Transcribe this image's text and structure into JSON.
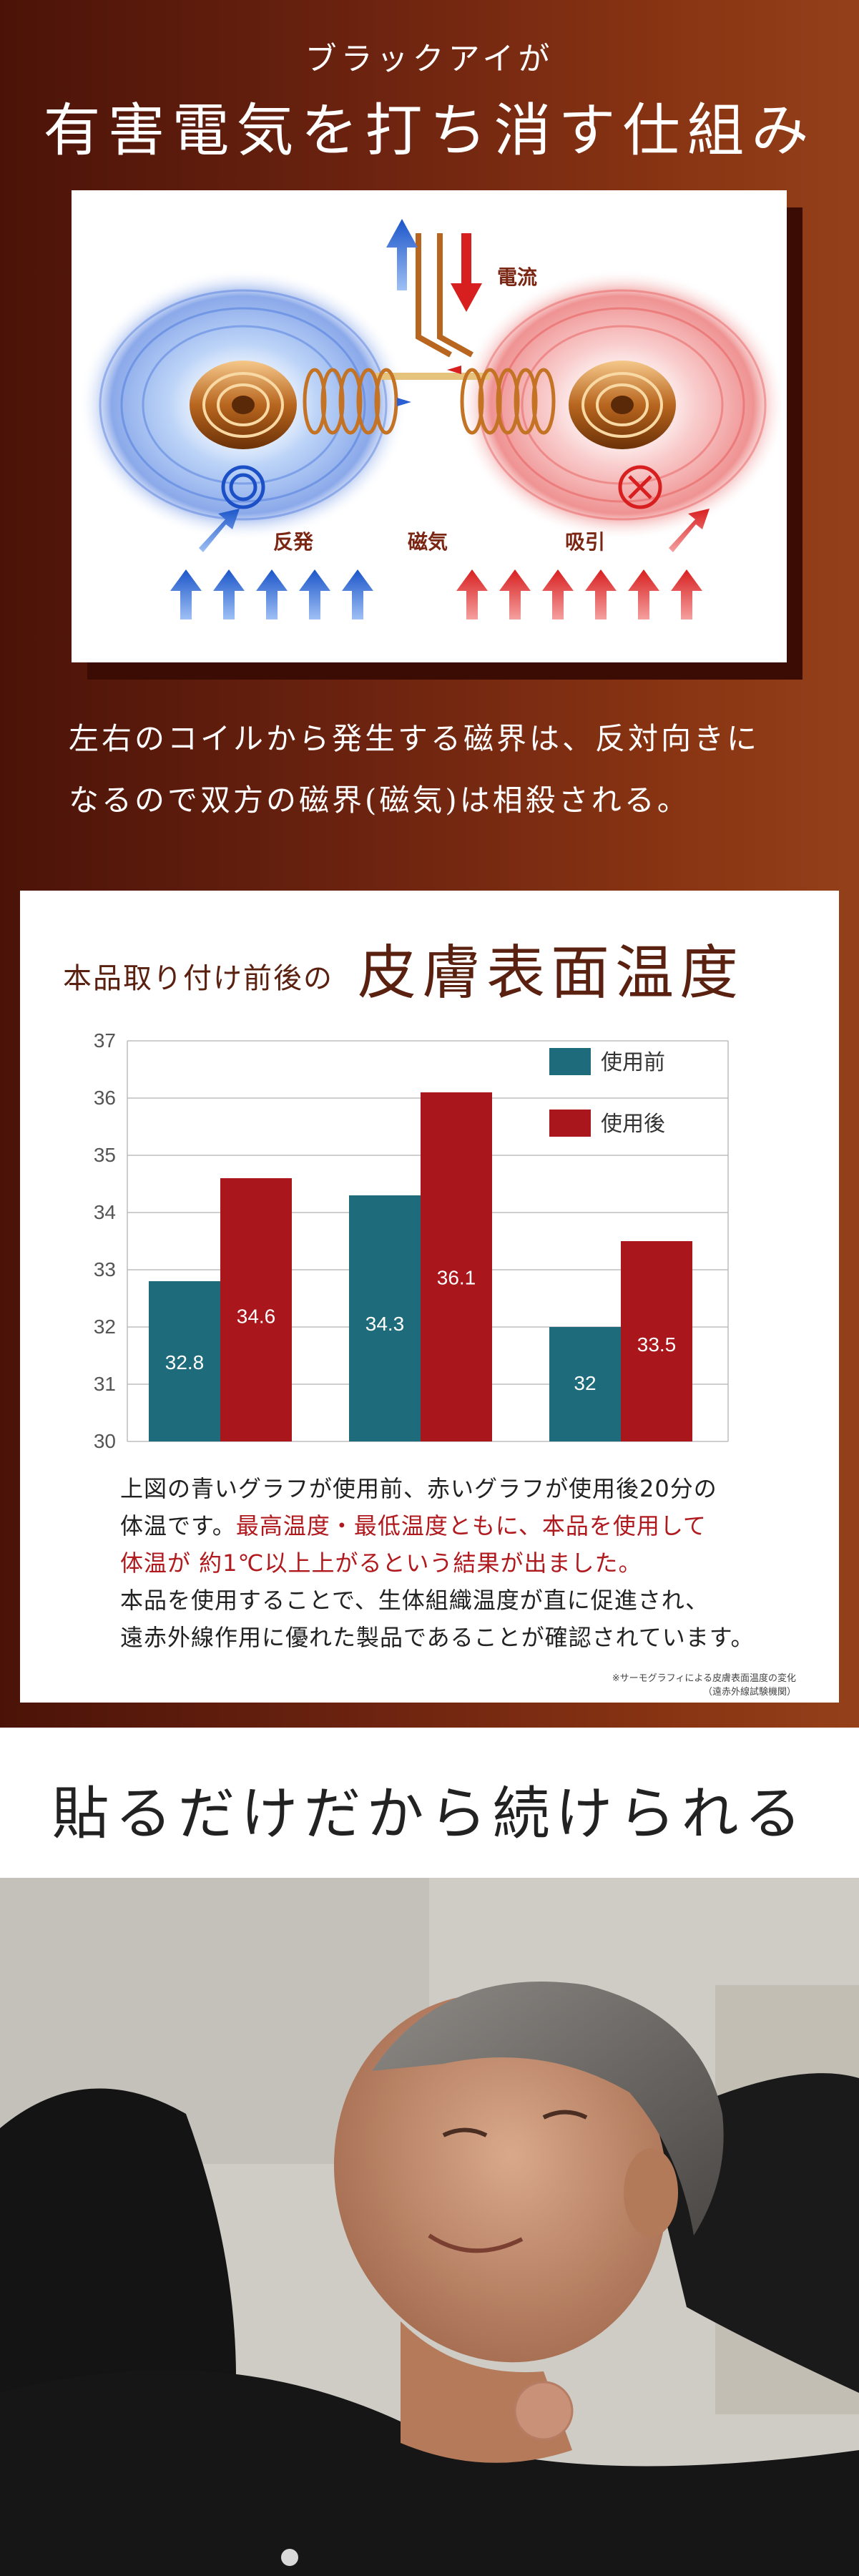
{
  "section1": {
    "subtitle": "ブラックアイが",
    "title": "有害電気を打ち消す仕組み",
    "diagram": {
      "label_current": "電流",
      "label_repel": "反発",
      "label_magnetism": "磁気",
      "label_attract": "吸引",
      "symbol_good": "◎",
      "symbol_bad": "×"
    },
    "description_line1": "左右のコイルから発生する磁界は、反対向きに",
    "description_line2": "なるので双方の磁界(磁気)は相殺される。"
  },
  "section2": {
    "heading_small": "本品取り付け前後の",
    "heading_big": "皮膚表面温度",
    "chart_data": {
      "type": "bar",
      "title": "",
      "xlabel": "",
      "ylabel": "",
      "ylim": [
        30,
        37
      ],
      "yticks": [
        "30",
        "31",
        "32",
        "33",
        "34",
        "35",
        "36",
        "37"
      ],
      "categories": [
        "",
        "",
        ""
      ],
      "series": [
        {
          "name": "使用前",
          "color": "#1e6b7b",
          "values": [
            32.8,
            34.3,
            32.0
          ],
          "labels": [
            "32.8",
            "34.3",
            "32"
          ]
        },
        {
          "name": "使用後",
          "color": "#a9161b",
          "values": [
            34.6,
            36.1,
            33.5
          ],
          "labels": [
            "34.6",
            "36.1",
            "33.5"
          ]
        }
      ],
      "legend_position": "top-right",
      "grid": true
    },
    "text_line1": "上図の青いグラフが使用前、赤いグラフが使用後20分の",
    "text_line2a": "体温です。",
    "text_line2b": "最高温度・最低温度ともに、本品を使用して",
    "text_line3": "体温が 約1℃以上上がるという結果が出ました。",
    "text_line4": "本品を使用することで、生体組織温度が直に促進され、",
    "text_line5": "遠赤外線作用に優れた製品であることが確認されています。",
    "note_line1": "※サーモグラフィによる皮膚表面温度の変化",
    "note_line2": "（遠赤外線試験機関）"
  },
  "section3": {
    "title": "貼るだけだから続けられる"
  }
}
